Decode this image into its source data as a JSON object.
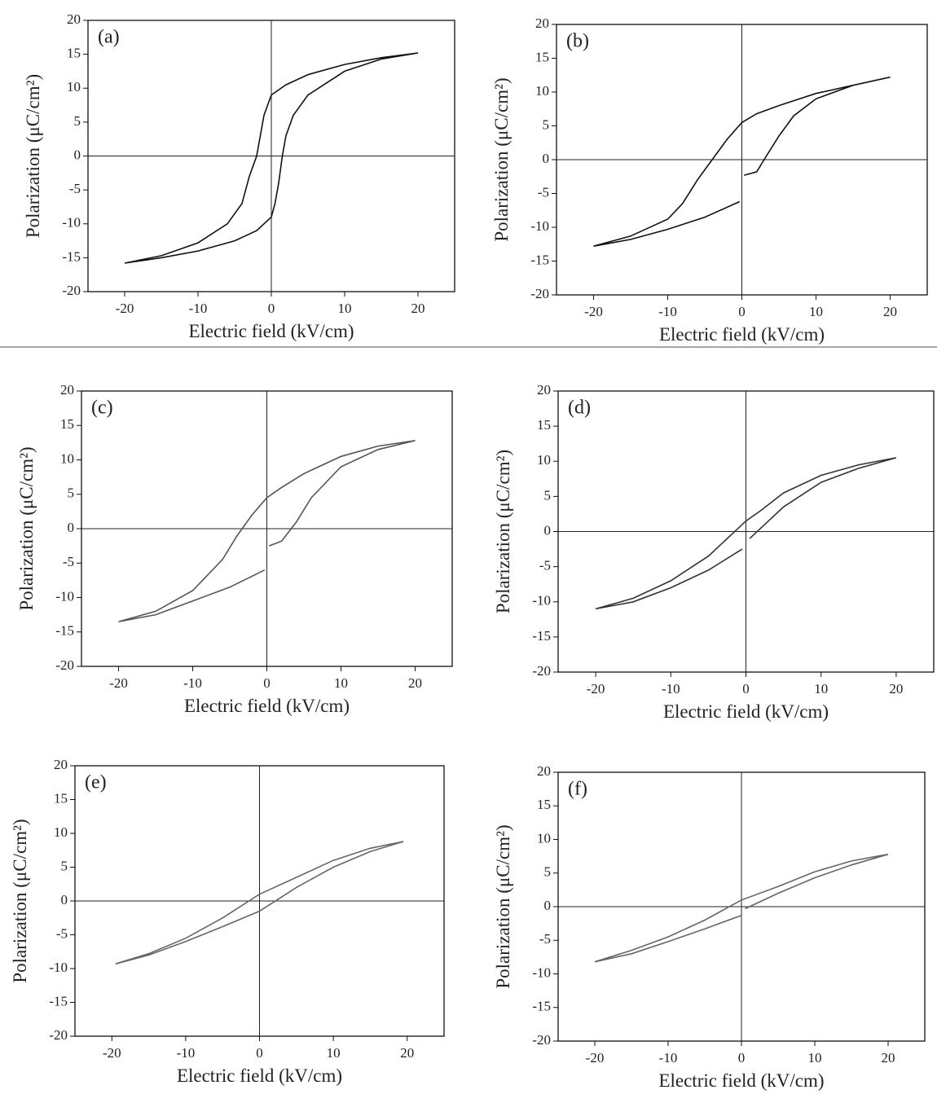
{
  "chart_data": [
    {
      "type": "line",
      "panel_label": "(a)",
      "xlabel": "Electric field (kV/cm)",
      "ylabel": "Polarization (μC/cm²)",
      "xlim": [
        -25,
        25
      ],
      "ylim": [
        -20,
        20
      ],
      "xticks": [
        -20,
        -10,
        0,
        10,
        20
      ],
      "yticks": [
        -20,
        -15,
        -10,
        -5,
        0,
        5,
        10,
        15,
        20
      ],
      "x": [
        20,
        15,
        10,
        5,
        2,
        0,
        -1,
        -1.5,
        -2,
        -3,
        -4,
        -6,
        -10,
        -15,
        -20,
        -15,
        -10,
        -5,
        -2,
        0,
        0.5,
        1,
        1.5,
        2,
        3,
        5,
        10,
        15,
        20
      ],
      "series": [
        {
          "color": "#111111",
          "values": [
            15.2,
            14.5,
            13.5,
            12,
            10.5,
            9,
            6,
            3,
            0,
            -3,
            -7,
            -10,
            -12.8,
            -14.7,
            -15.8,
            -15,
            -14,
            -12.5,
            -11,
            -9,
            -7,
            -4,
            0,
            3,
            6,
            9,
            12.5,
            14.3,
            15.2
          ]
        }
      ]
    },
    {
      "type": "line",
      "panel_label": "(b)",
      "xlabel": "Electric field (kV/cm)",
      "ylabel": "Polarization (μC/cm²)",
      "xlim": [
        -25,
        25
      ],
      "ylim": [
        -20,
        20
      ],
      "xticks": [
        -20,
        -10,
        0,
        10,
        20
      ],
      "yticks": [
        -20,
        -15,
        -10,
        -5,
        0,
        5,
        10,
        15,
        20
      ],
      "x": [
        20,
        15,
        10,
        5,
        2,
        0,
        -2,
        -4,
        -6,
        -8,
        -10,
        -15,
        -20,
        -15,
        -10,
        -5,
        -0.3,
        0,
        0.3,
        2,
        3,
        5,
        7,
        10,
        15,
        20
      ],
      "series": [
        {
          "color": "#111111",
          "values": [
            12.2,
            11,
            9.8,
            8,
            6.8,
            5.5,
            3,
            0,
            -3,
            -6.5,
            -8.8,
            -11.3,
            -12.8,
            -11.8,
            -10.3,
            -8.5,
            -6.2,
            null,
            -2.3,
            -1.8,
            0,
            3.5,
            6.5,
            9,
            11,
            12.2
          ]
        }
      ]
    },
    {
      "type": "line",
      "panel_label": "(c)",
      "xlabel": "Electric field (kV/cm)",
      "ylabel": "Polarization (μC/cm²)",
      "xlim": [
        -25,
        25
      ],
      "ylim": [
        -20,
        20
      ],
      "xticks": [
        -20,
        -10,
        0,
        10,
        20
      ],
      "yticks": [
        -20,
        -15,
        -10,
        -5,
        0,
        5,
        10,
        15,
        20
      ],
      "x": [
        20,
        15,
        10,
        5,
        2,
        0,
        -2,
        -4,
        -6,
        -10,
        -15,
        -20,
        -15,
        -10,
        -5,
        -0.3,
        0,
        0.3,
        2,
        4,
        6,
        10,
        15,
        20
      ],
      "series": [
        {
          "color": "#555555",
          "values": [
            12.8,
            12,
            10.5,
            8,
            6,
            4.5,
            2,
            -1,
            -4.5,
            -9,
            -12,
            -13.5,
            -12.5,
            -10.5,
            -8.5,
            -6,
            null,
            -2.5,
            -1.8,
            1,
            4.5,
            9,
            11.5,
            12.8
          ]
        }
      ]
    },
    {
      "type": "line",
      "panel_label": "(d)",
      "xlabel": "Electric field (kV/cm)",
      "ylabel": "Polarization (μC/cm²)",
      "xlim": [
        -25,
        25
      ],
      "ylim": [
        -20,
        20
      ],
      "xticks": [
        -20,
        -10,
        0,
        10,
        20
      ],
      "yticks": [
        -20,
        -15,
        -10,
        -5,
        0,
        5,
        10,
        15,
        20
      ],
      "x": [
        20,
        15,
        10,
        5,
        2,
        0,
        -2,
        -5,
        -10,
        -15,
        -20,
        -15,
        -10,
        -5,
        -0.5,
        0,
        0.5,
        2,
        5,
        10,
        15,
        20
      ],
      "series": [
        {
          "color": "#333333",
          "values": [
            10.5,
            9.5,
            8,
            5.5,
            3,
            1.5,
            -0.5,
            -3.5,
            -7,
            -9.5,
            -11,
            -10,
            -8,
            -5.5,
            -2.5,
            null,
            -1,
            0.5,
            3.5,
            7,
            9,
            10.5
          ]
        }
      ]
    },
    {
      "type": "line",
      "panel_label": "(e)",
      "xlabel": "Electric field (kV/cm)",
      "ylabel": "Polarization (μC/cm²)",
      "xlim": [
        -25,
        25
      ],
      "ylim": [
        -20,
        20
      ],
      "xticks": [
        -20,
        -10,
        0,
        10,
        20
      ],
      "yticks": [
        -20,
        -15,
        -10,
        -5,
        0,
        5,
        10,
        15,
        20
      ],
      "x": [
        19.5,
        15,
        10,
        5,
        0,
        -5,
        -10,
        -15,
        -19.5,
        -15,
        -10,
        -5,
        0,
        5,
        10,
        15,
        19.5
      ],
      "series": [
        {
          "color": "#666666",
          "values": [
            8.8,
            7.8,
            6,
            3.5,
            1,
            -2.5,
            -5.5,
            -7.8,
            -9.3,
            -8,
            -6,
            -3.8,
            -1.5,
            2,
            5,
            7.3,
            8.8
          ]
        }
      ]
    },
    {
      "type": "line",
      "panel_label": "(f)",
      "xlabel": "Electric field (kV/cm)",
      "ylabel": "Polarization (μC/cm²)",
      "xlim": [
        -25,
        25
      ],
      "ylim": [
        -20,
        20
      ],
      "xticks": [
        -20,
        -10,
        0,
        10,
        20
      ],
      "yticks": [
        -20,
        -15,
        -10,
        -5,
        0,
        5,
        10,
        15,
        20
      ],
      "x": [
        20,
        15,
        10,
        5,
        0,
        -5,
        -10,
        -15,
        -20,
        -15,
        -10,
        -5,
        0,
        0,
        0.5,
        5,
        10,
        15,
        20
      ],
      "series": [
        {
          "color": "#666666",
          "values": [
            7.8,
            6.8,
            5.2,
            3,
            1,
            -2,
            -4.5,
            -6.5,
            -8.2,
            -7,
            -5.2,
            -3.3,
            -1.3,
            null,
            -0.3,
            2,
            4.3,
            6.2,
            7.8
          ]
        }
      ]
    }
  ]
}
